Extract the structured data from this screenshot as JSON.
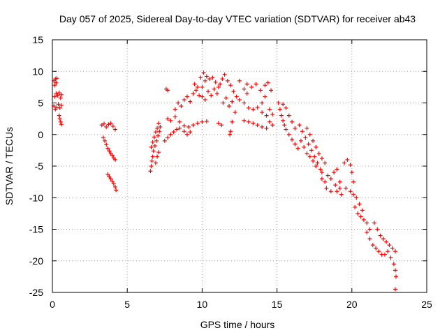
{
  "chart_data": {
    "type": "scatter",
    "title": "Day 057 of 2025, Sidereal Day-to-day VTEC variation (SDTVAR) for receiver ab43",
    "xlabel": "GPS time / hours",
    "ylabel": "SDTVAR / TECUs",
    "xlim": [
      0,
      25
    ],
    "ylim": [
      -25,
      15
    ],
    "xticks": [
      "0",
      "5",
      "10",
      "15",
      "20",
      "25"
    ],
    "yticks": [
      "15",
      "10",
      "5",
      "0",
      "-5",
      "-10",
      "-15",
      "-20",
      "-25"
    ],
    "grid": true,
    "marker": "+",
    "color": "#ff0000",
    "series": [
      {
        "name": "ab43",
        "points": [
          [
            0.1,
            8.5
          ],
          [
            0.15,
            7.8
          ],
          [
            0.2,
            8.8
          ],
          [
            0.25,
            8.2
          ],
          [
            0.3,
            8.9
          ],
          [
            0.15,
            6.0
          ],
          [
            0.25,
            6.5
          ],
          [
            0.35,
            6.2
          ],
          [
            0.45,
            6.6
          ],
          [
            0.55,
            5.8
          ],
          [
            0.6,
            6.3
          ],
          [
            0.1,
            4.5
          ],
          [
            0.2,
            4.0
          ],
          [
            0.3,
            4.3
          ],
          [
            0.4,
            4.8
          ],
          [
            0.5,
            4.2
          ],
          [
            0.6,
            4.6
          ],
          [
            0.45,
            3.0
          ],
          [
            0.5,
            2.5
          ],
          [
            0.55,
            2.0
          ],
          [
            0.6,
            1.6
          ],
          [
            3.3,
            1.5
          ],
          [
            3.45,
            1.7
          ],
          [
            3.6,
            1.2
          ],
          [
            3.75,
            1.6
          ],
          [
            3.9,
            1.8
          ],
          [
            4.05,
            1.3
          ],
          [
            4.2,
            0.8
          ],
          [
            3.4,
            -0.5
          ],
          [
            3.5,
            -1.0
          ],
          [
            3.6,
            -1.6
          ],
          [
            3.7,
            -2.2
          ],
          [
            3.8,
            -2.6
          ],
          [
            3.9,
            -3.0
          ],
          [
            4.0,
            -3.3
          ],
          [
            4.1,
            -3.7
          ],
          [
            4.2,
            -4.0
          ],
          [
            3.7,
            -6.3
          ],
          [
            3.8,
            -6.7
          ],
          [
            3.9,
            -7.0
          ],
          [
            4.0,
            -7.4
          ],
          [
            4.1,
            -7.8
          ],
          [
            4.2,
            -8.3
          ],
          [
            4.25,
            -8.8
          ],
          [
            6.55,
            -5.8
          ],
          [
            6.6,
            -5.0
          ],
          [
            6.65,
            -4.2
          ],
          [
            6.7,
            -3.5
          ],
          [
            6.75,
            -2.6
          ],
          [
            6.85,
            -1.8
          ],
          [
            6.95,
            -1.0
          ],
          [
            7.05,
            -0.2
          ],
          [
            7.15,
            0.5
          ],
          [
            7.2,
            1.2
          ],
          [
            6.6,
            -2.0
          ],
          [
            6.7,
            -1.2
          ],
          [
            6.8,
            -0.4
          ],
          [
            6.9,
            0.4
          ],
          [
            7.0,
            1.0
          ],
          [
            7.1,
            1.8
          ],
          [
            7.0,
            -3.5
          ],
          [
            7.1,
            -2.8
          ],
          [
            6.9,
            -4.5
          ],
          [
            7.6,
            7.2
          ],
          [
            7.7,
            7.0
          ],
          [
            7.5,
            -1.0
          ],
          [
            7.7,
            -0.5
          ],
          [
            7.9,
            0.0
          ],
          [
            8.1,
            0.4
          ],
          [
            8.3,
            0.8
          ],
          [
            8.5,
            1.0
          ],
          [
            8.8,
            1.4
          ],
          [
            9.1,
            1.2
          ],
          [
            9.4,
            1.5
          ],
          [
            9.7,
            1.8
          ],
          [
            10.0,
            2.0
          ],
          [
            10.3,
            2.1
          ],
          [
            7.7,
            2.5
          ],
          [
            7.9,
            2.2
          ],
          [
            8.2,
            2.8
          ],
          [
            8.5,
            2.0
          ],
          [
            8.8,
            0.5
          ],
          [
            9.0,
            0.0
          ],
          [
            9.2,
            0.4
          ],
          [
            8.2,
            4.0
          ],
          [
            8.4,
            5.0
          ],
          [
            8.6,
            4.5
          ],
          [
            8.8,
            5.5
          ],
          [
            9.0,
            6.0
          ],
          [
            9.2,
            5.2
          ],
          [
            9.4,
            6.5
          ],
          [
            9.6,
            7.0
          ],
          [
            9.8,
            6.2
          ],
          [
            10.0,
            7.5
          ],
          [
            9.5,
            8.0
          ],
          [
            9.7,
            7.5
          ],
          [
            9.9,
            9.0
          ],
          [
            10.1,
            9.8
          ],
          [
            10.2,
            8.5
          ],
          [
            10.3,
            9.2
          ],
          [
            10.5,
            8.8
          ],
          [
            10.7,
            9.0
          ],
          [
            10.9,
            8.3
          ],
          [
            11.1,
            7.5
          ],
          [
            10.0,
            6.0
          ],
          [
            10.2,
            5.5
          ],
          [
            10.4,
            6.8
          ],
          [
            10.6,
            6.2
          ],
          [
            10.8,
            7.2
          ],
          [
            11.0,
            6.5
          ],
          [
            11.2,
            8.0
          ],
          [
            11.35,
            8.8
          ],
          [
            11.5,
            9.5
          ],
          [
            11.7,
            8.5
          ],
          [
            11.9,
            7.8
          ],
          [
            12.1,
            6.8
          ],
          [
            12.3,
            6.0
          ],
          [
            11.4,
            5.0
          ],
          [
            11.6,
            5.8
          ],
          [
            11.8,
            4.5
          ],
          [
            12.0,
            5.2
          ],
          [
            12.2,
            3.5
          ],
          [
            12.0,
            2.0
          ],
          [
            11.9,
            0.5
          ],
          [
            11.85,
            0.0
          ],
          [
            11.1,
            1.8
          ],
          [
            11.3,
            1.5
          ],
          [
            12.5,
            5.5
          ],
          [
            12.8,
            5.0
          ],
          [
            13.1,
            4.2
          ],
          [
            13.4,
            4.0
          ],
          [
            13.7,
            4.3
          ],
          [
            14.0,
            5.0
          ],
          [
            14.2,
            6.0
          ],
          [
            13.0,
            8.0
          ],
          [
            13.3,
            7.5
          ],
          [
            13.6,
            8.0
          ],
          [
            13.9,
            7.0
          ],
          [
            14.2,
            7.8
          ],
          [
            14.4,
            8.2
          ],
          [
            14.6,
            7.0
          ],
          [
            12.5,
            8.5
          ],
          [
            12.8,
            7.2
          ],
          [
            13.0,
            6.5
          ],
          [
            12.8,
            2.2
          ],
          [
            13.1,
            2.0
          ],
          [
            13.4,
            1.8
          ],
          [
            13.7,
            1.5
          ],
          [
            14.0,
            1.2
          ],
          [
            14.3,
            1.0
          ],
          [
            14.5,
            2.0
          ],
          [
            14.7,
            1.5
          ],
          [
            14.0,
            3.5
          ],
          [
            14.3,
            3.0
          ],
          [
            14.5,
            4.0
          ],
          [
            14.7,
            3.2
          ],
          [
            15.1,
            5.0
          ],
          [
            15.2,
            4.0
          ],
          [
            15.3,
            3.0
          ],
          [
            15.4,
            2.2
          ],
          [
            15.5,
            1.5
          ],
          [
            15.6,
            0.8
          ],
          [
            15.8,
            0.0
          ],
          [
            16.0,
            -0.8
          ],
          [
            16.2,
            -1.5
          ],
          [
            16.4,
            -2.2
          ],
          [
            15.4,
            4.8
          ],
          [
            15.6,
            4.2
          ],
          [
            15.8,
            3.0
          ],
          [
            16.0,
            2.0
          ],
          [
            16.2,
            1.0
          ],
          [
            16.5,
            1.5
          ],
          [
            16.7,
            0.5
          ],
          [
            16.9,
            -0.5
          ],
          [
            17.1,
            -1.5
          ],
          [
            17.3,
            -2.5
          ],
          [
            17.5,
            -3.5
          ],
          [
            17.7,
            -4.5
          ],
          [
            17.9,
            -5.5
          ],
          [
            18.0,
            -6.0
          ],
          [
            16.6,
            -1.0
          ],
          [
            16.8,
            -2.0
          ],
          [
            17.0,
            -3.0
          ],
          [
            17.2,
            -3.5
          ],
          [
            17.4,
            -4.2
          ],
          [
            17.6,
            -5.0
          ],
          [
            17.0,
            1.0
          ],
          [
            17.2,
            0.0
          ],
          [
            17.4,
            -1.0
          ],
          [
            17.6,
            -2.0
          ],
          [
            17.8,
            -3.0
          ],
          [
            18.0,
            -3.8
          ],
          [
            18.2,
            -4.5
          ],
          [
            18.0,
            -7.0
          ],
          [
            18.2,
            -7.5
          ],
          [
            18.4,
            -6.5
          ],
          [
            18.6,
            -7.0
          ],
          [
            18.8,
            -6.0
          ],
          [
            19.0,
            -5.5
          ],
          [
            19.2,
            -7.5
          ],
          [
            18.3,
            -8.5
          ],
          [
            18.6,
            -9.0
          ],
          [
            18.9,
            -8.0
          ],
          [
            19.2,
            -8.5
          ],
          [
            19.5,
            -4.5
          ],
          [
            19.7,
            -4.0
          ],
          [
            19.9,
            -4.8
          ],
          [
            20.0,
            -6.0
          ],
          [
            20.1,
            -7.5
          ],
          [
            19.0,
            -9.0
          ],
          [
            19.3,
            -9.5
          ],
          [
            19.6,
            -8.5
          ],
          [
            19.9,
            -9.0
          ],
          [
            20.1,
            -9.5
          ],
          [
            20.3,
            -10.0
          ],
          [
            20.5,
            -11.0
          ],
          [
            20.7,
            -12.0
          ],
          [
            20.2,
            -11.5
          ],
          [
            20.4,
            -12.5
          ],
          [
            20.6,
            -13.0
          ],
          [
            20.8,
            -13.5
          ],
          [
            21.0,
            -14.0
          ],
          [
            21.2,
            -15.0
          ],
          [
            21.0,
            -15.5
          ],
          [
            21.2,
            -16.5
          ],
          [
            21.4,
            -17.5
          ],
          [
            21.6,
            -18.0
          ],
          [
            21.8,
            -18.5
          ],
          [
            22.0,
            -19.0
          ],
          [
            21.5,
            -14.0
          ],
          [
            21.7,
            -15.0
          ],
          [
            21.9,
            -16.0
          ],
          [
            22.1,
            -16.5
          ],
          [
            22.3,
            -17.0
          ],
          [
            22.5,
            -17.5
          ],
          [
            22.7,
            -18.0
          ],
          [
            22.9,
            -18.5
          ],
          [
            22.2,
            -19.0
          ],
          [
            22.4,
            -18.5
          ],
          [
            22.6,
            -19.5
          ],
          [
            22.8,
            -20.5
          ],
          [
            22.9,
            -21.5
          ],
          [
            22.95,
            -22.5
          ],
          [
            22.9,
            -24.5
          ]
        ]
      }
    ]
  }
}
